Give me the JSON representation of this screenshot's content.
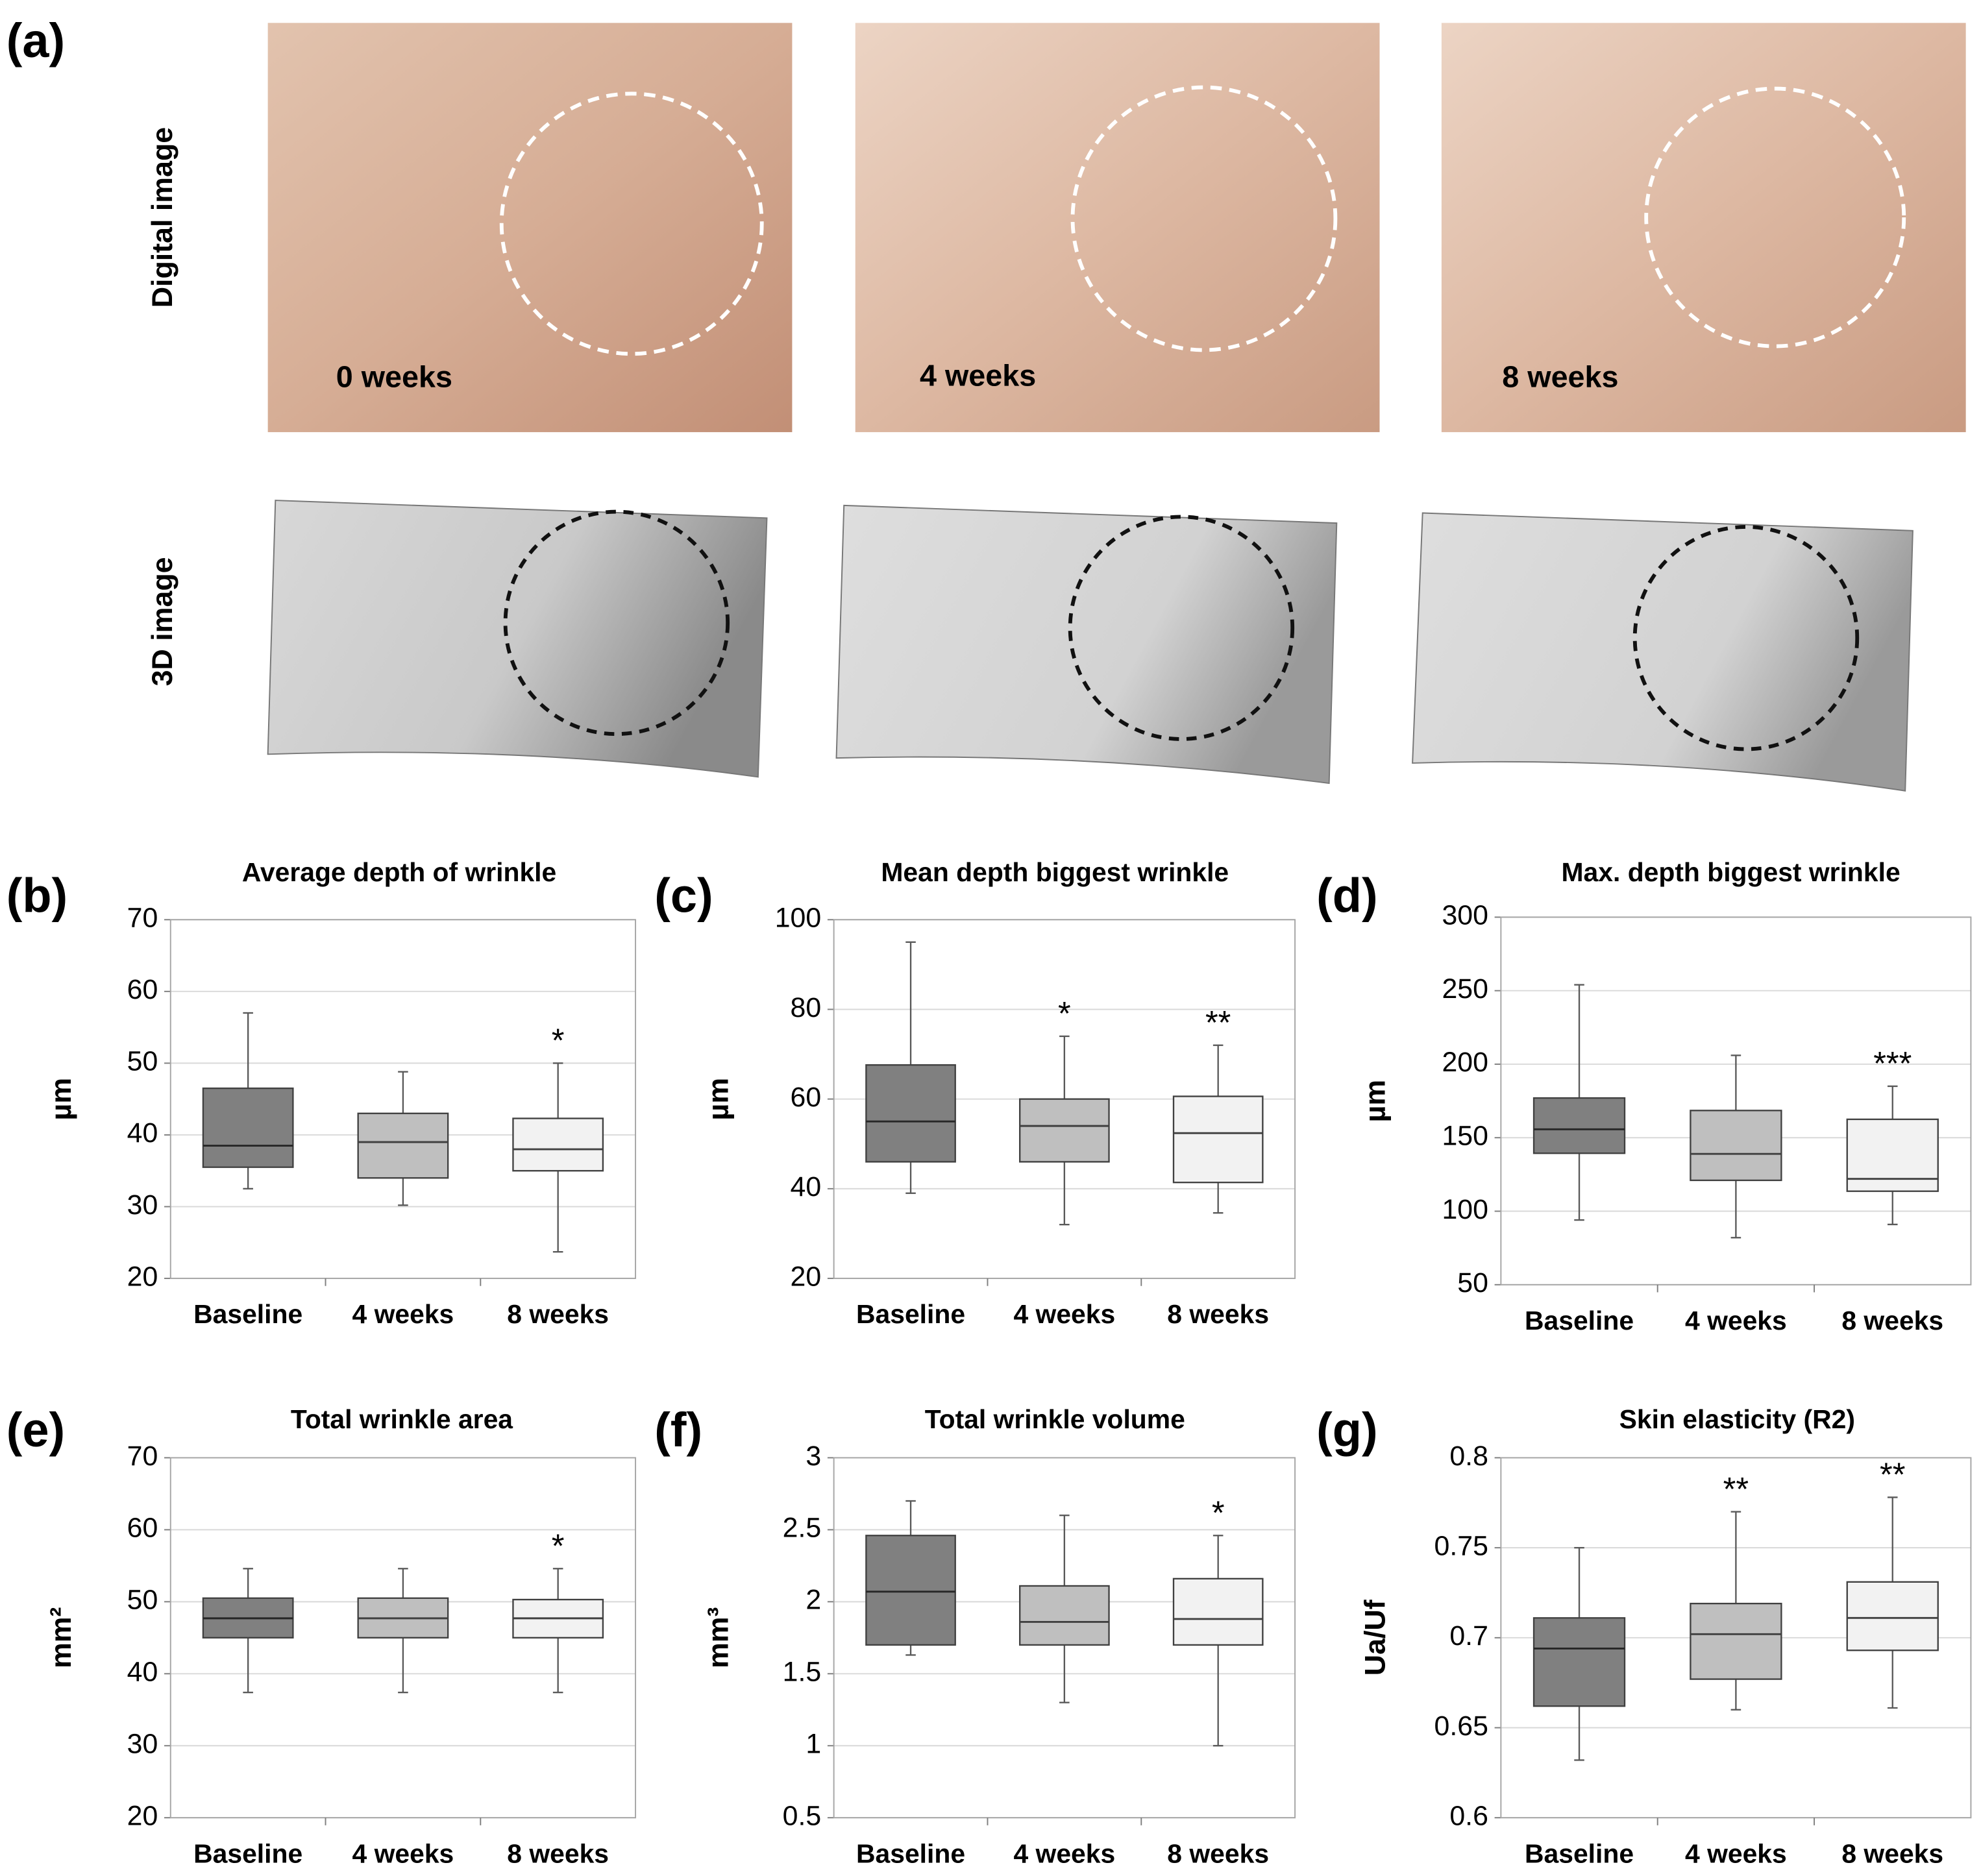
{
  "panel_a": {
    "label": "(a)",
    "row_labels": [
      "Digital image",
      "3D image"
    ],
    "time_labels": [
      "0 weeks",
      "4 weeks",
      "8 weeks"
    ]
  },
  "chart_data": [
    {
      "type": "box",
      "panel": "(b)",
      "title": "Average depth of wrinkle",
      "ylabel": "µm",
      "categories": [
        "Baseline",
        "4 weeks",
        "8 weeks"
      ],
      "colors": [
        "#808080",
        "#bfbfbf",
        "#f2f2f2"
      ],
      "boxes": [
        {
          "min": 32.5,
          "q1": 35.5,
          "median": 38.5,
          "q3": 46.5,
          "max": 57
        },
        {
          "min": 30.2,
          "q1": 34,
          "median": 39,
          "q3": 43,
          "max": 48.8
        },
        {
          "min": 23.7,
          "q1": 35,
          "median": 38,
          "q3": 42.3,
          "max": 50
        }
      ],
      "significance": [
        null,
        null,
        "*"
      ],
      "ylim": [
        20,
        70
      ],
      "yticks": [
        20,
        30,
        40,
        50,
        60,
        70
      ],
      "grid": true
    },
    {
      "type": "box",
      "panel": "(c)",
      "title": "Mean depth biggest wrinkle",
      "ylabel": "µm",
      "categories": [
        "Baseline",
        "4 weeks",
        "8 weeks"
      ],
      "colors": [
        "#808080",
        "#bfbfbf",
        "#f2f2f2"
      ],
      "boxes": [
        {
          "min": 39,
          "q1": 46,
          "median": 55,
          "q3": 67.6,
          "max": 95
        },
        {
          "min": 32,
          "q1": 46,
          "median": 54,
          "q3": 60,
          "max": 74
        },
        {
          "min": 34.6,
          "q1": 41.4,
          "median": 52.4,
          "q3": 60.6,
          "max": 72
        }
      ],
      "significance": [
        null,
        "*",
        "**"
      ],
      "ylim": [
        20,
        100
      ],
      "yticks": [
        20,
        40,
        60,
        80,
        100
      ],
      "grid": true
    },
    {
      "type": "box",
      "panel": "(d)",
      "title": "Max. depth biggest wrinkle",
      "ylabel": "µm",
      "categories": [
        "Baseline",
        "4 weeks",
        "8 weeks"
      ],
      "colors": [
        "#808080",
        "#bfbfbf",
        "#f2f2f2"
      ],
      "boxes": [
        {
          "min": 94,
          "q1": 139.4,
          "median": 155.7,
          "q3": 177,
          "max": 254
        },
        {
          "min": 82,
          "q1": 121,
          "median": 139,
          "q3": 168.5,
          "max": 206
        },
        {
          "min": 91,
          "q1": 113.6,
          "median": 122,
          "q3": 162.5,
          "max": 185
        }
      ],
      "significance": [
        null,
        null,
        "***"
      ],
      "ylim": [
        50,
        300
      ],
      "yticks": [
        50,
        100,
        150,
        200,
        250,
        300
      ],
      "grid": true
    },
    {
      "type": "box",
      "panel": "(e)",
      "title": "Total wrinkle area",
      "ylabel": "mm²",
      "categories": [
        "Baseline",
        "4 weeks",
        "8 weeks"
      ],
      "colors": [
        "#808080",
        "#bfbfbf",
        "#f2f2f2"
      ],
      "boxes": [
        {
          "min": 37.4,
          "q1": 45,
          "median": 47.7,
          "q3": 50.5,
          "max": 54.6
        },
        {
          "min": 37.4,
          "q1": 45,
          "median": 47.7,
          "q3": 50.5,
          "max": 54.6
        },
        {
          "min": 37.4,
          "q1": 45,
          "median": 47.7,
          "q3": 50.3,
          "max": 54.6
        }
      ],
      "significance": [
        null,
        null,
        "*"
      ],
      "ylim": [
        20,
        70
      ],
      "yticks": [
        20,
        30,
        40,
        50,
        60,
        70
      ],
      "grid": true
    },
    {
      "type": "box",
      "panel": "(f)",
      "title": "Total wrinkle volume",
      "ylabel": "mm³",
      "categories": [
        "Baseline",
        "4 weeks",
        "8 weeks"
      ],
      "colors": [
        "#808080",
        "#bfbfbf",
        "#f2f2f2"
      ],
      "boxes": [
        {
          "min": 1.63,
          "q1": 1.7,
          "median": 2.07,
          "q3": 2.46,
          "max": 2.7
        },
        {
          "min": 1.3,
          "q1": 1.7,
          "median": 1.86,
          "q3": 2.11,
          "max": 2.6
        },
        {
          "min": 1.0,
          "q1": 1.7,
          "median": 1.88,
          "q3": 2.16,
          "max": 2.46
        }
      ],
      "significance": [
        null,
        null,
        "*"
      ],
      "ylim": [
        0.5,
        3
      ],
      "yticks": [
        0.5,
        1,
        1.5,
        2,
        2.5,
        3
      ],
      "grid": true
    },
    {
      "type": "box",
      "panel": "(g)",
      "title": "Skin elasticity (R2)",
      "ylabel": "Ua/Uf",
      "categories": [
        "Baseline",
        "4 weeks",
        "8 weeks"
      ],
      "colors": [
        "#808080",
        "#bfbfbf",
        "#f2f2f2"
      ],
      "boxes": [
        {
          "min": 0.632,
          "q1": 0.662,
          "median": 0.694,
          "q3": 0.711,
          "max": 0.75
        },
        {
          "min": 0.66,
          "q1": 0.677,
          "median": 0.702,
          "q3": 0.719,
          "max": 0.77
        },
        {
          "min": 0.661,
          "q1": 0.693,
          "median": 0.711,
          "q3": 0.731,
          "max": 0.778
        }
      ],
      "significance": [
        null,
        "**",
        "**"
      ],
      "ylim": [
        0.6,
        0.8
      ],
      "yticks": [
        0.6,
        0.65,
        0.7,
        0.75,
        0.8
      ],
      "grid": true
    }
  ]
}
